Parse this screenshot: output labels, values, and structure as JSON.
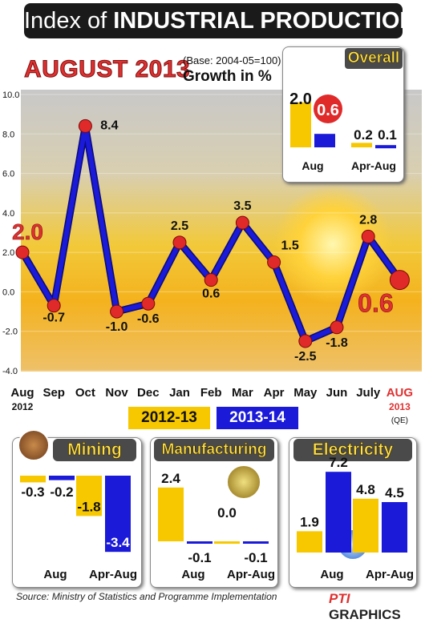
{
  "title_prefix": "Index of ",
  "title_bold": "INDUSTRIAL PRODUCTION",
  "headline": "AUGUST 2013",
  "base_note": "(Base: 2004-05=100)",
  "growth_label": "Growth in %",
  "colors": {
    "y2012": "#f7c800",
    "y2013": "#1a1ad8",
    "line": "#1a1ad8",
    "marker": "#e02a2a",
    "accent": "#e03030"
  },
  "chart_data": [
    {
      "type": "line",
      "title": "AUGUST 2013",
      "ylabel": "Growth in %",
      "ylim": [
        -4.0,
        10.0
      ],
      "y_ticks": [
        "10.0",
        "8.0",
        "6.0",
        "4.0",
        "2.0",
        "0.0",
        "-2.0",
        "-4.0"
      ],
      "categories": [
        "Aug",
        "Sep",
        "Oct",
        "Nov",
        "Dec",
        "Jan",
        "Feb",
        "Mar",
        "Apr",
        "May",
        "Jun",
        "July",
        "AUG"
      ],
      "category_sublabels": {
        "Aug": "2012",
        "AUG": "2013"
      },
      "qe_note": "(QE)",
      "values": [
        2.0,
        -0.7,
        8.4,
        -1.0,
        -0.6,
        2.5,
        0.6,
        3.5,
        1.5,
        -2.5,
        -1.8,
        2.8,
        0.6
      ],
      "value_labels": [
        "2.0",
        "-0.7",
        "8.4",
        "-1.0",
        "-0.6",
        "2.5",
        "0.6",
        "3.5",
        "1.5",
        "-2.5",
        "-1.8",
        "2.8",
        "0.6"
      ]
    },
    {
      "type": "bar",
      "title": "Overall",
      "categories": [
        "Aug",
        "Apr-Aug"
      ],
      "series": [
        {
          "name": "2012-13",
          "values": [
            2.0,
            0.2
          ]
        },
        {
          "name": "2013-14",
          "values": [
            0.6,
            0.1
          ]
        }
      ]
    },
    {
      "type": "bar",
      "title": "Mining",
      "categories": [
        "Aug",
        "Apr-Aug"
      ],
      "series": [
        {
          "name": "2012-13",
          "values": [
            -0.3,
            -1.8
          ]
        },
        {
          "name": "2013-14",
          "values": [
            -0.2,
            -3.4
          ]
        }
      ]
    },
    {
      "type": "bar",
      "title": "Manufacturing",
      "categories": [
        "Aug",
        "Apr-Aug"
      ],
      "series": [
        {
          "name": "2012-13",
          "values": [
            2.4,
            0.0
          ]
        },
        {
          "name": "2013-14",
          "values": [
            -0.1,
            -0.1
          ]
        }
      ]
    },
    {
      "type": "bar",
      "title": "Electricity",
      "categories": [
        "Aug",
        "Apr-Aug"
      ],
      "series": [
        {
          "name": "2012-13",
          "values": [
            1.9,
            4.8
          ]
        },
        {
          "name": "2013-14",
          "values": [
            7.2,
            4.5
          ]
        }
      ]
    }
  ],
  "legend": [
    "2012-13",
    "2013-14"
  ],
  "source": "Source: Ministry of Statistics and Programme Implementation",
  "credit_brand": "PTI",
  "credit_text": "GRAPHICS"
}
